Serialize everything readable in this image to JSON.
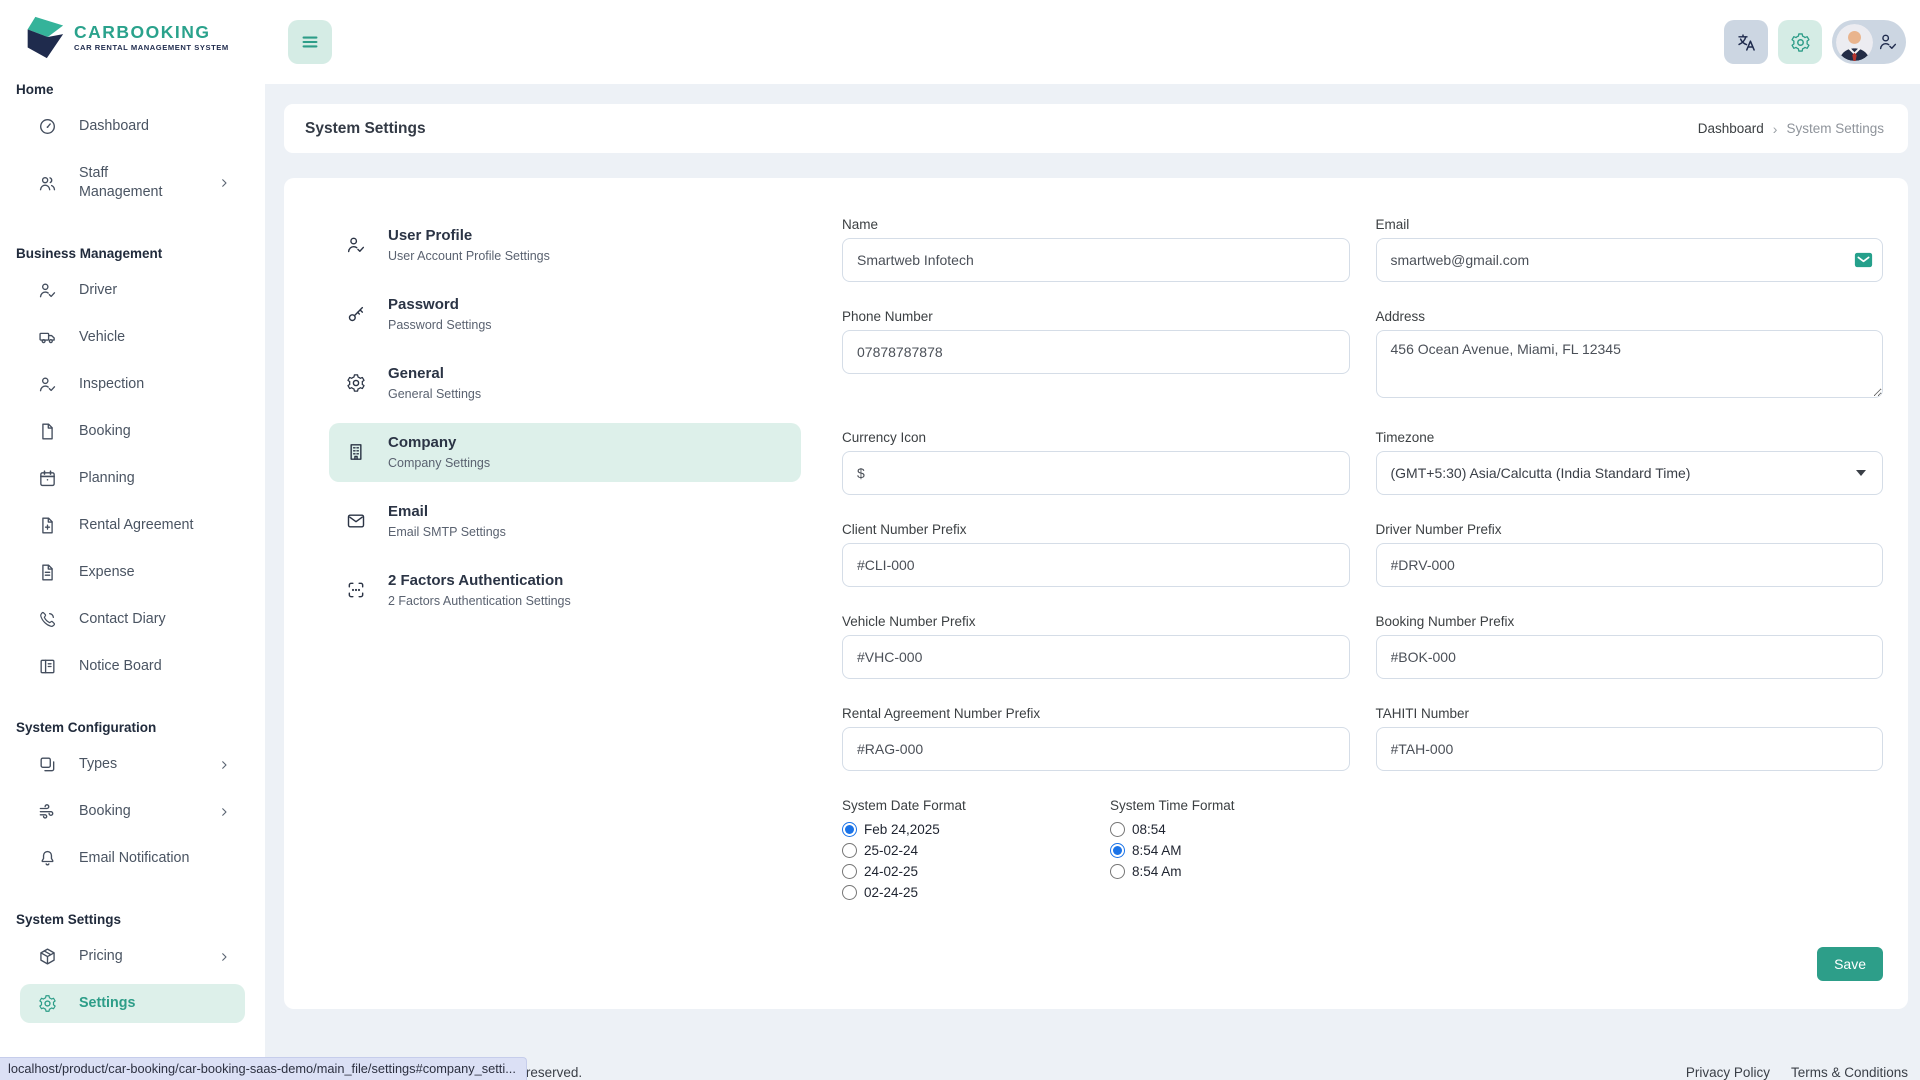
{
  "app": {
    "logo_title": "CARBOOKING",
    "logo_subtitle": "CAR RENTAL MANAGEMENT SYSTEM",
    "accent_color": "#2d9d88",
    "navy_color": "#1f2b4d",
    "active_bg_color": "#ddf0ea",
    "radio_accent_color": "#1a73e8"
  },
  "header": {
    "menu_icon": "hamburger-icon",
    "actions": [
      {
        "name": "translate-button",
        "icon": "translate-icon"
      },
      {
        "name": "settings-button",
        "icon": "gear-icon"
      },
      {
        "name": "profile-button",
        "icon": "user-check-icon"
      }
    ]
  },
  "sidebar": {
    "sections": [
      {
        "title": "Home",
        "items": [
          {
            "label": "Dashboard",
            "icon": "dashboard-icon",
            "has_submenu": false,
            "active": false
          },
          {
            "label": "Staff Management",
            "icon": "staff-icon",
            "has_submenu": true,
            "active": false
          }
        ]
      },
      {
        "title": "Business Management",
        "items": [
          {
            "label": "Driver",
            "icon": "driver-icon",
            "has_submenu": false,
            "active": false
          },
          {
            "label": "Vehicle",
            "icon": "vehicle-icon",
            "has_submenu": false,
            "active": false
          },
          {
            "label": "Inspection",
            "icon": "inspection-icon",
            "has_submenu": false,
            "active": false
          },
          {
            "label": "Booking",
            "icon": "booking-icon",
            "has_submenu": false,
            "active": false
          },
          {
            "label": "Planning",
            "icon": "planning-icon",
            "has_submenu": false,
            "active": false
          },
          {
            "label": "Rental Agreement",
            "icon": "rental-agreement-icon",
            "has_submenu": false,
            "active": false
          },
          {
            "label": "Expense",
            "icon": "expense-icon",
            "has_submenu": false,
            "active": false
          },
          {
            "label": "Contact Diary",
            "icon": "contact-diary-icon",
            "has_submenu": false,
            "active": false
          },
          {
            "label": "Notice Board",
            "icon": "notice-board-icon",
            "has_submenu": false,
            "active": false
          }
        ]
      },
      {
        "title": "System Configuration",
        "items": [
          {
            "label": "Types",
            "icon": "types-icon",
            "has_submenu": true,
            "active": false
          },
          {
            "label": "Booking",
            "icon": "booking-config-icon",
            "has_submenu": true,
            "active": false
          },
          {
            "label": "Email Notification",
            "icon": "bell-icon",
            "has_submenu": false,
            "active": false
          }
        ]
      },
      {
        "title": "System Settings",
        "items": [
          {
            "label": "Pricing",
            "icon": "pricing-icon",
            "has_submenu": true,
            "active": false
          },
          {
            "label": "Settings",
            "icon": "settings-icon",
            "has_submenu": false,
            "active": true
          }
        ]
      }
    ]
  },
  "page": {
    "title": "System Settings",
    "breadcrumb": [
      "Dashboard",
      "System Settings"
    ]
  },
  "settings_tabs": [
    {
      "title": "User Profile",
      "subtitle": "User Account Profile Settings",
      "icon": "user-check-icon",
      "active": false
    },
    {
      "title": "Password",
      "subtitle": "Password Settings",
      "icon": "key-icon",
      "active": false
    },
    {
      "title": "General",
      "subtitle": "General Settings",
      "icon": "gear-icon",
      "active": false
    },
    {
      "title": "Company",
      "subtitle": "Company Settings",
      "icon": "building-icon",
      "active": true
    },
    {
      "title": "Email",
      "subtitle": "Email SMTP Settings",
      "icon": "mail-icon",
      "active": false
    },
    {
      "title": "2 Factors Authentication",
      "subtitle": "2 Factors Authentication Settings",
      "icon": "scan-icon",
      "active": false
    }
  ],
  "form": {
    "name": {
      "label": "Name",
      "value": "Smartweb Infotech"
    },
    "email": {
      "label": "Email",
      "value": "smartweb@gmail.com",
      "icon": "mail-badge-icon"
    },
    "phone": {
      "label": "Phone Number",
      "value": "07878787878"
    },
    "address": {
      "label": "Address",
      "value": "456 Ocean Avenue, Miami, FL 12345"
    },
    "currency": {
      "label": "Currency Icon",
      "value": "$"
    },
    "timezone": {
      "label": "Timezone",
      "value": "(GMT+5:30) Asia/Calcutta (India Standard Time)"
    },
    "client_prefix": {
      "label": "Client Number Prefix",
      "value": "#CLI-000"
    },
    "driver_prefix": {
      "label": "Driver Number Prefix",
      "value": "#DRV-000"
    },
    "vehicle_prefix": {
      "label": "Vehicle Number Prefix",
      "value": "#VHC-000"
    },
    "booking_prefix": {
      "label": "Booking Number Prefix",
      "value": "#BOK-000"
    },
    "rental_prefix": {
      "label": "Rental Agreement Number Prefix",
      "value": "#RAG-000"
    },
    "tahiti": {
      "label": "TAHITI Number",
      "value": "#TAH-000"
    },
    "date_format": {
      "label": "System Date Format",
      "options": [
        "Feb 24,2025",
        "25-02-24",
        "24-02-25",
        "02-24-25"
      ],
      "selected": 0
    },
    "time_format": {
      "label": "System Time Format",
      "options": [
        "08:54",
        "8:54 AM",
        "8:54 Am"
      ],
      "selected": 1
    },
    "save_label": "Save"
  },
  "footer": {
    "copyright": "Copyright 2025 © Car Booking All rights reserved.",
    "links": [
      "Privacy Policy",
      "Terms & Conditions"
    ]
  },
  "statusbar": {
    "url": "localhost/product/car-booking/car-booking-saas-demo/main_file/settings#company_setti..."
  }
}
